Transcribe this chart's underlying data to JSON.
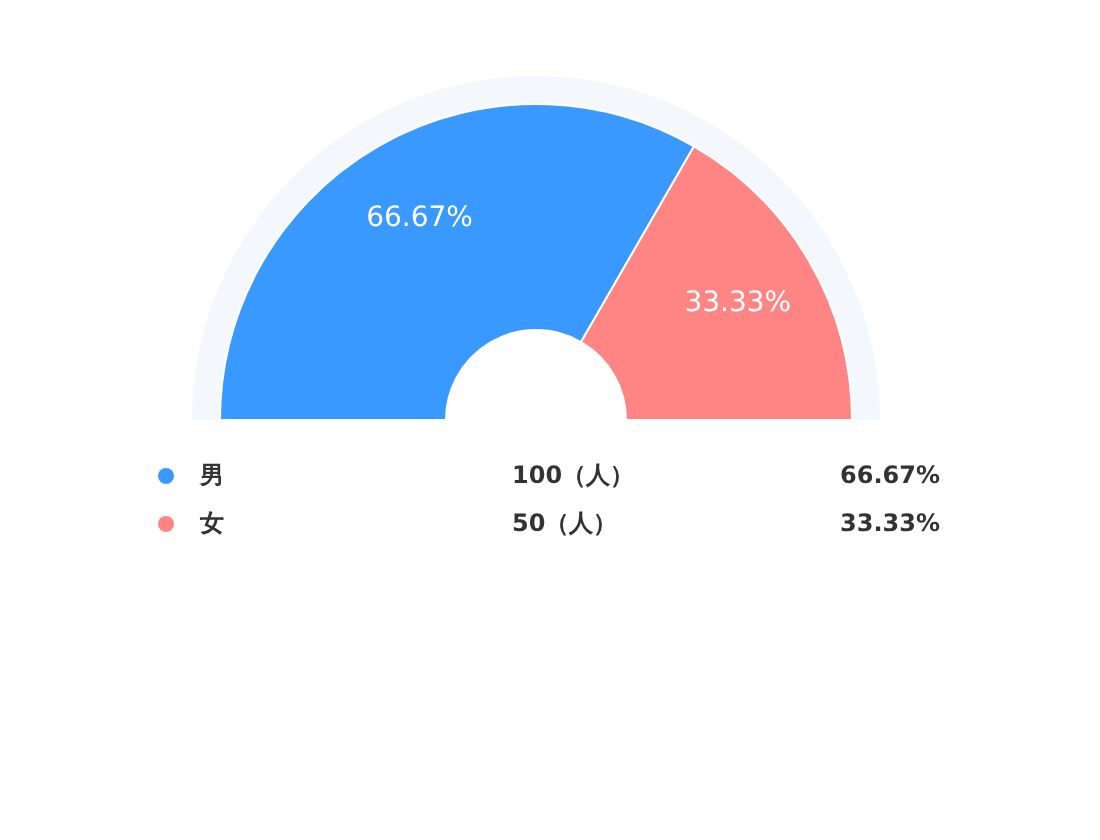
{
  "chart_data": {
    "type": "donut",
    "categories": [
      "男",
      "女"
    ],
    "values": [
      100,
      50
    ],
    "colors": [
      "#3a99ff",
      "#ff8585"
    ],
    "value_labels": [
      "100（人）",
      "50（人）"
    ],
    "annotations": [
      {
        "text": "66.67%",
        "x": "男"
      },
      {
        "text": "33.33%",
        "x": "女"
      }
    ],
    "legend": "bottom"
  }
}
